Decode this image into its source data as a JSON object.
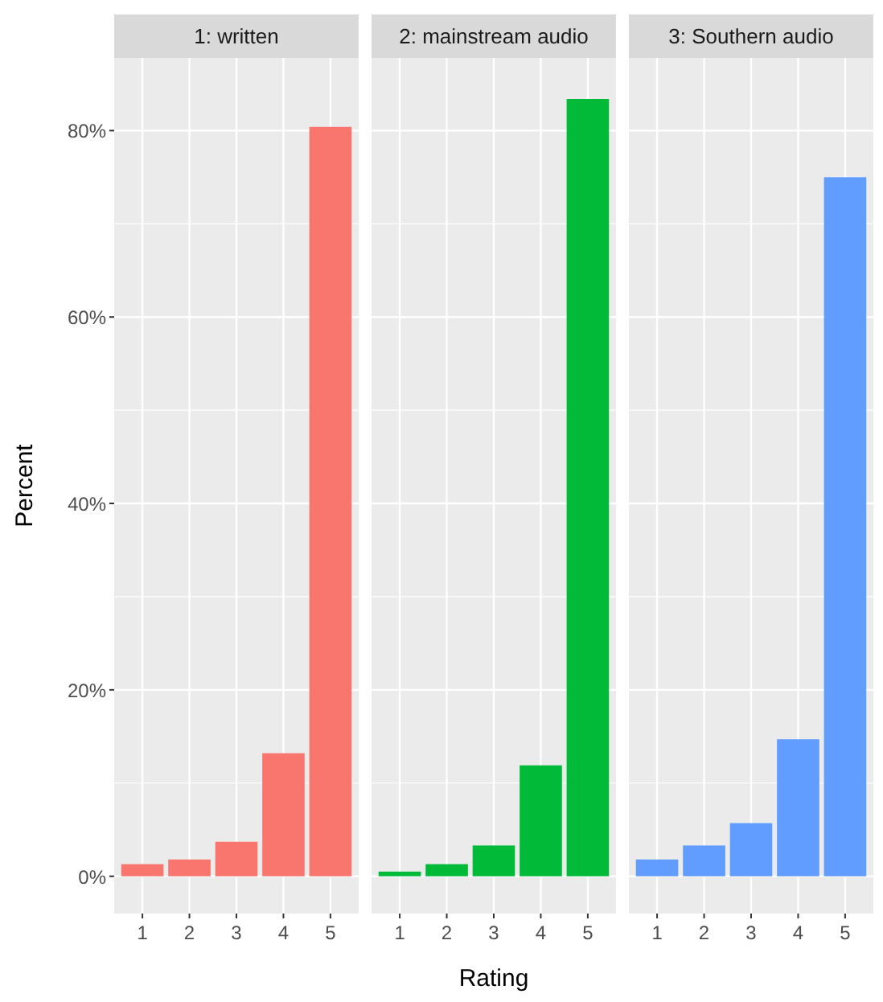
{
  "chart_data": [
    {
      "type": "bar",
      "title": "1: written",
      "ylabel": "Percent",
      "categories": [
        "1",
        "2",
        "3",
        "4",
        "5"
      ],
      "values": [
        1.3,
        1.8,
        3.7,
        13.2,
        80.4
      ],
      "color": "#f8766d",
      "ylim": [
        -4,
        87.8
      ],
      "yticks": [
        {
          "value": 0,
          "label": "0%"
        },
        {
          "value": 20,
          "label": "20%"
        },
        {
          "value": 40,
          "label": "40%"
        },
        {
          "value": 60,
          "label": "60%"
        },
        {
          "value": 80,
          "label": "80%"
        }
      ],
      "grid": true
    },
    {
      "type": "bar",
      "title": "2: mainstream audio",
      "xlabel": "Rating",
      "categories": [
        "1",
        "2",
        "3",
        "4",
        "5"
      ],
      "values": [
        0.5,
        1.3,
        3.3,
        11.9,
        83.4
      ],
      "color": "#00ba38",
      "ylim": [
        -4,
        87.8
      ],
      "yticks": [
        0,
        20,
        40,
        60,
        80
      ],
      "grid": true,
      "tick_labels": "x"
    },
    {
      "type": "bar",
      "title": "3: Southern audio",
      "categories": [
        "1",
        "2",
        "3",
        "4",
        "5"
      ],
      "values": [
        1.8,
        3.3,
        5.7,
        14.7,
        75.0
      ],
      "color": "#619cff",
      "ylim": [
        -4,
        87.8
      ],
      "yticks": [
        0,
        20,
        40,
        60,
        80
      ],
      "grid": true,
      "tick_labels": "x"
    }
  ]
}
